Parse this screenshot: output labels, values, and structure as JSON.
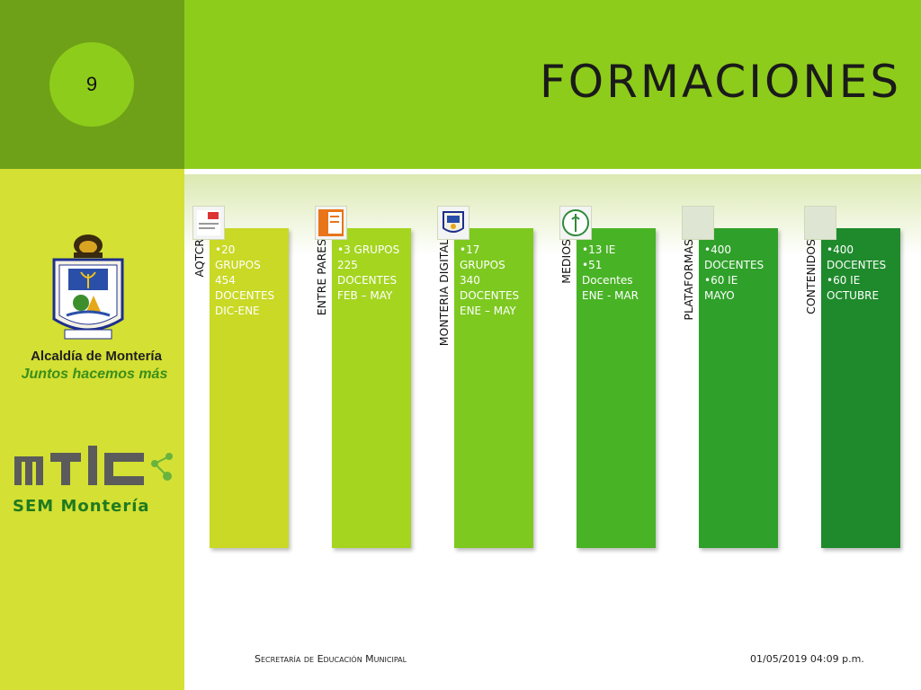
{
  "slide": {
    "number": "9",
    "title": "FORMACIONES",
    "colors": {
      "sidebar": "#d4e033",
      "corner": "#6ea117",
      "header": "#8ecc1b"
    }
  },
  "logos": {
    "alcaldia_title": "Alcaldía de Montería",
    "alcaldia_tagline": "Juntos hacemos más",
    "mtic_subtitle": "SEM Montería"
  },
  "columns": [
    {
      "label": "AQTCR",
      "lines": [
        "•20",
        "GRUPOS",
        "454",
        "DOCENTES",
        "DIC-ENE"
      ],
      "color": "#c9d925",
      "text_color": "#ffffff",
      "icon": "aqtcr-thumbnail"
    },
    {
      "label": "ENTRE PARES",
      "lines": [
        "•3 GRUPOS",
        "225",
        "DOCENTES",
        "FEB – MAY"
      ],
      "color": "#a5d51f",
      "text_color": "#ffffff",
      "icon": "entre-pares-thumbnail"
    },
    {
      "label": "MONTERIA DIGITAL",
      "lines": [
        "•17",
        "GRUPOS",
        "340",
        "DOCENTES",
        "ENE – MAY"
      ],
      "color": "#7ec920",
      "text_color": "#ffffff",
      "icon": "monteria-digital-thumbnail"
    },
    {
      "label": "MEDIOS",
      "lines": [
        "•13 IE",
        "•51",
        "Docentes",
        "ENE - MAR"
      ],
      "color": "#49b326",
      "text_color": "#ffffff",
      "icon": "medios-thumbnail"
    },
    {
      "label": "PLATAFORMAS",
      "lines": [
        "•400",
        "DOCENTES",
        "•60 IE",
        "MAYO"
      ],
      "color": "#2fa02a",
      "text_color": "#ffffff",
      "icon": "plataformas-thumbnail"
    },
    {
      "label": "CONTENIDOS",
      "lines": [
        "•400",
        "DOCENTES",
        "•60 IE",
        "OCTUBRE"
      ],
      "color": "#1f8a2c",
      "text_color": "#ffffff",
      "icon": "contenidos-thumbnail"
    }
  ],
  "footer": {
    "left": "Secretaría de Educación Municipal",
    "right": "01/05/2019 04:09 p.m."
  }
}
